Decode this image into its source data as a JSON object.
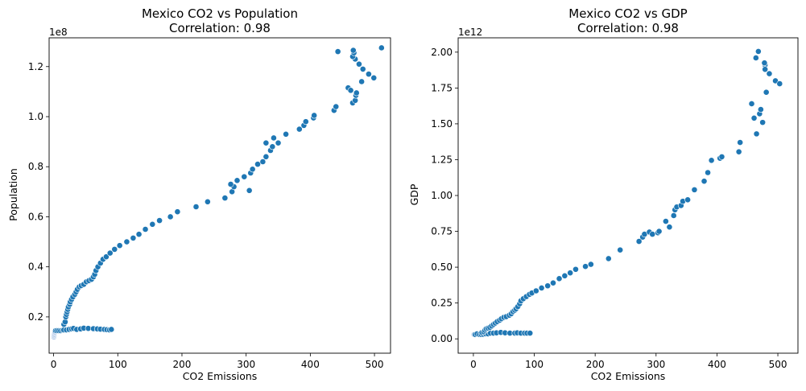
{
  "chart_data": [
    {
      "type": "scatter",
      "title": "Mexico CO2 vs Population",
      "subtitle": "Correlation: 0.98",
      "xlabel": "CO2 Emissions",
      "ylabel": "Population",
      "y_offset_label": "1e8",
      "xlim": [
        -7,
        525
      ],
      "ylim": [
        0.055,
        1.315
      ],
      "x_ticks": [
        0,
        100,
        200,
        300,
        400,
        500
      ],
      "y_ticks": [
        0.2,
        0.4,
        0.6,
        0.8,
        1.0,
        1.2
      ],
      "y_tick_labels": [
        "0.2",
        "0.4",
        "0.6",
        "0.8",
        "1.0",
        "1.2"
      ],
      "grid": false,
      "color": "#1f77b4",
      "points": [
        [
          0.5,
          0.12
        ],
        [
          0.8,
          0.125
        ],
        [
          1,
          0.13
        ],
        [
          1.5,
          0.135
        ],
        [
          2,
          0.14
        ],
        [
          3,
          0.145
        ],
        [
          5,
          0.145
        ],
        [
          8,
          0.145
        ],
        [
          11,
          0.145
        ],
        [
          14,
          0.147
        ],
        [
          16,
          0.148
        ],
        [
          20,
          0.148
        ],
        [
          24,
          0.15
        ],
        [
          28,
          0.152
        ],
        [
          31,
          0.154
        ],
        [
          36,
          0.15
        ],
        [
          42,
          0.152
        ],
        [
          47,
          0.155
        ],
        [
          54,
          0.154
        ],
        [
          62,
          0.153
        ],
        [
          68,
          0.152
        ],
        [
          73,
          0.151
        ],
        [
          79,
          0.15
        ],
        [
          83,
          0.149
        ],
        [
          87,
          0.148
        ],
        [
          90,
          0.15
        ],
        [
          16,
          0.17
        ],
        [
          18,
          0.18
        ],
        [
          19,
          0.2
        ],
        [
          20,
          0.21
        ],
        [
          21,
          0.22
        ],
        [
          22,
          0.23
        ],
        [
          23,
          0.24
        ],
        [
          25,
          0.25
        ],
        [
          26,
          0.26
        ],
        [
          28,
          0.27
        ],
        [
          30,
          0.28
        ],
        [
          33,
          0.29
        ],
        [
          35,
          0.3
        ],
        [
          37,
          0.31
        ],
        [
          40,
          0.32
        ],
        [
          43,
          0.325
        ],
        [
          47,
          0.33
        ],
        [
          51,
          0.34
        ],
        [
          55,
          0.345
        ],
        [
          59,
          0.35
        ],
        [
          62,
          0.36
        ],
        [
          64,
          0.37
        ],
        [
          66,
          0.385
        ],
        [
          69,
          0.4
        ],
        [
          73,
          0.415
        ],
        [
          77,
          0.43
        ],
        [
          82,
          0.44
        ],
        [
          88,
          0.455
        ],
        [
          95,
          0.47
        ],
        [
          103,
          0.485
        ],
        [
          114,
          0.5
        ],
        [
          124,
          0.515
        ],
        [
          133,
          0.53
        ],
        [
          143,
          0.55
        ],
        [
          154,
          0.57
        ],
        [
          165,
          0.585
        ],
        [
          182,
          0.6
        ],
        [
          193,
          0.62
        ],
        [
          222,
          0.64
        ],
        [
          240,
          0.66
        ],
        [
          267,
          0.675
        ],
        [
          278,
          0.7
        ],
        [
          281,
          0.72
        ],
        [
          276,
          0.73
        ],
        [
          286,
          0.745
        ],
        [
          297,
          0.76
        ],
        [
          307,
          0.775
        ],
        [
          310,
          0.79
        ],
        [
          305,
          0.705
        ],
        [
          318,
          0.81
        ],
        [
          326,
          0.82
        ],
        [
          331,
          0.84
        ],
        [
          338,
          0.865
        ],
        [
          341,
          0.88
        ],
        [
          350,
          0.895
        ],
        [
          331,
          0.895
        ],
        [
          343,
          0.915
        ],
        [
          362,
          0.93
        ],
        [
          383,
          0.95
        ],
        [
          390,
          0.965
        ],
        [
          393,
          0.98
        ],
        [
          405,
          0.995
        ],
        [
          406,
          1.005
        ],
        [
          437,
          1.025
        ],
        [
          440,
          1.04
        ],
        [
          459,
          1.115
        ],
        [
          463,
          1.105
        ],
        [
          466,
          1.055
        ],
        [
          470,
          1.065
        ],
        [
          471,
          1.085
        ],
        [
          472,
          1.095
        ],
        [
          480,
          1.14
        ],
        [
          482,
          1.19
        ],
        [
          491,
          1.17
        ],
        [
          499,
          1.155
        ],
        [
          476,
          1.21
        ],
        [
          470,
          1.23
        ],
        [
          466,
          1.24
        ],
        [
          468,
          1.255
        ],
        [
          467,
          1.265
        ],
        [
          443,
          1.26
        ],
        [
          511,
          1.275
        ]
      ]
    },
    {
      "type": "scatter",
      "title": "Mexico CO2 vs GDP",
      "subtitle": "Correlation: 0.98",
      "xlabel": "CO2 Emissions",
      "ylabel": "GDP",
      "y_offset_label": "1e12",
      "xlim": [
        -25,
        533
      ],
      "ylim": [
        -0.1,
        2.1
      ],
      "x_ticks": [
        0,
        100,
        200,
        300,
        400,
        500
      ],
      "y_ticks": [
        0,
        0.25,
        0.5,
        0.75,
        1.0,
        1.25,
        1.5,
        1.75,
        2.0
      ],
      "y_tick_labels": [
        "0.00",
        "0.25",
        "0.50",
        "0.75",
        "1.00",
        "1.25",
        "1.50",
        "1.75",
        "2.00"
      ],
      "grid": false,
      "color": "#1f77b4",
      "points": [
        [
          1,
          0.03
        ],
        [
          3,
          0.03
        ],
        [
          6,
          0.035
        ],
        [
          10,
          0.03
        ],
        [
          13,
          0.03
        ],
        [
          16,
          0.032
        ],
        [
          20,
          0.035
        ],
        [
          24,
          0.035
        ],
        [
          28,
          0.04
        ],
        [
          33,
          0.04
        ],
        [
          38,
          0.042
        ],
        [
          45,
          0.045
        ],
        [
          52,
          0.042
        ],
        [
          60,
          0.04
        ],
        [
          68,
          0.04
        ],
        [
          72,
          0.042
        ],
        [
          78,
          0.04
        ],
        [
          84,
          0.04
        ],
        [
          88,
          0.04
        ],
        [
          93,
          0.04
        ],
        [
          14,
          0.045
        ],
        [
          17,
          0.05
        ],
        [
          19,
          0.06
        ],
        [
          21,
          0.07
        ],
        [
          24,
          0.075
        ],
        [
          27,
          0.08
        ],
        [
          30,
          0.09
        ],
        [
          33,
          0.1
        ],
        [
          36,
          0.11
        ],
        [
          39,
          0.12
        ],
        [
          43,
          0.13
        ],
        [
          46,
          0.14
        ],
        [
          50,
          0.15
        ],
        [
          54,
          0.155
        ],
        [
          59,
          0.165
        ],
        [
          62,
          0.175
        ],
        [
          65,
          0.19
        ],
        [
          68,
          0.2
        ],
        [
          70,
          0.21
        ],
        [
          73,
          0.225
        ],
        [
          76,
          0.245
        ],
        [
          78,
          0.265
        ],
        [
          82,
          0.28
        ],
        [
          87,
          0.295
        ],
        [
          92,
          0.31
        ],
        [
          96,
          0.32
        ],
        [
          103,
          0.335
        ],
        [
          112,
          0.355
        ],
        [
          122,
          0.37
        ],
        [
          131,
          0.39
        ],
        [
          141,
          0.42
        ],
        [
          150,
          0.44
        ],
        [
          159,
          0.46
        ],
        [
          168,
          0.485
        ],
        [
          184,
          0.505
        ],
        [
          193,
          0.52
        ],
        [
          222,
          0.56
        ],
        [
          241,
          0.62
        ],
        [
          272,
          0.68
        ],
        [
          278,
          0.71
        ],
        [
          281,
          0.73
        ],
        [
          289,
          0.745
        ],
        [
          294,
          0.73
        ],
        [
          303,
          0.74
        ],
        [
          305,
          0.75
        ],
        [
          316,
          0.82
        ],
        [
          322,
          0.78
        ],
        [
          329,
          0.86
        ],
        [
          331,
          0.9
        ],
        [
          334,
          0.92
        ],
        [
          341,
          0.93
        ],
        [
          344,
          0.96
        ],
        [
          352,
          0.97
        ],
        [
          363,
          1.04
        ],
        [
          379,
          1.1
        ],
        [
          385,
          1.16
        ],
        [
          391,
          1.245
        ],
        [
          405,
          1.26
        ],
        [
          408,
          1.27
        ],
        [
          436,
          1.305
        ],
        [
          438,
          1.37
        ],
        [
          457,
          1.64
        ],
        [
          461,
          1.54
        ],
        [
          465,
          1.43
        ],
        [
          470,
          1.57
        ],
        [
          472,
          1.6
        ],
        [
          475,
          1.51
        ],
        [
          479,
          1.91
        ],
        [
          479,
          1.88
        ],
        [
          481,
          1.72
        ],
        [
          486,
          1.85
        ],
        [
          496,
          1.8
        ],
        [
          503,
          1.78
        ],
        [
          464,
          1.96
        ],
        [
          468,
          2.005
        ],
        [
          478,
          1.925
        ]
      ]
    }
  ]
}
